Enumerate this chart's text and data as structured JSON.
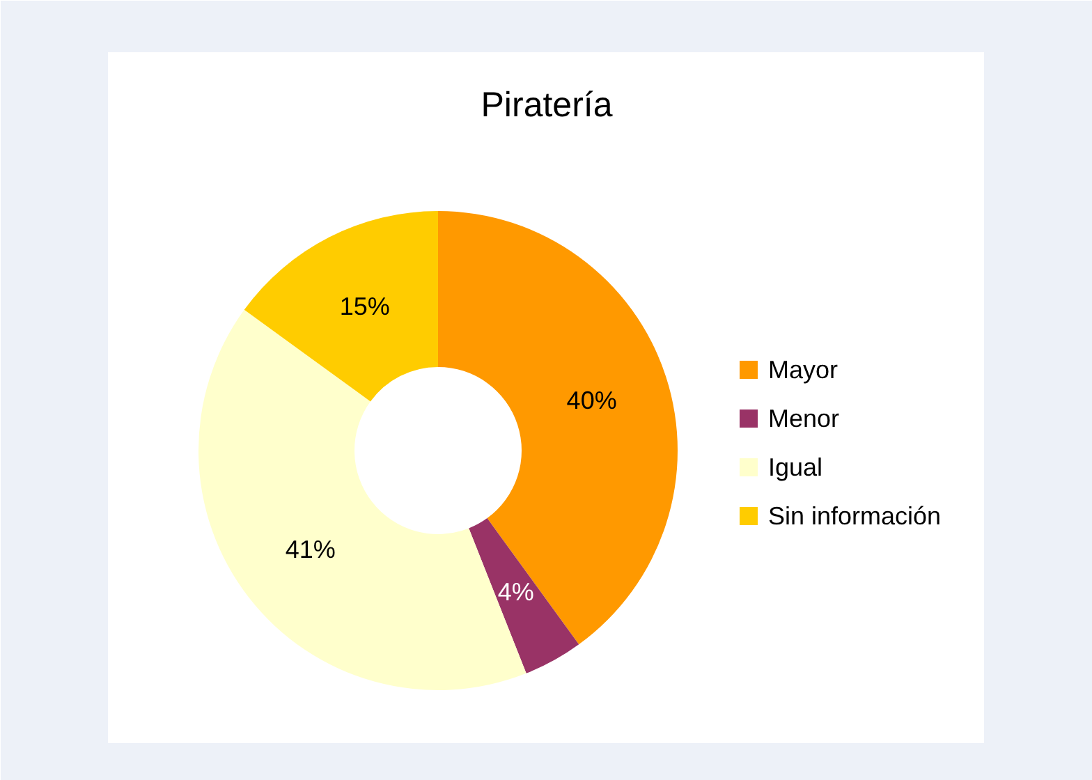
{
  "chart_data": {
    "type": "donut",
    "title": "Piratería",
    "categories": [
      "Mayor",
      "Menor",
      "Igual",
      "Sin información"
    ],
    "values": [
      40,
      4,
      41,
      15
    ],
    "colors": [
      "#ff9900",
      "#993366",
      "#ffffcc",
      "#ffcc00"
    ],
    "value_labels": [
      "40%",
      "4%",
      "41%",
      "15%"
    ],
    "legend": "right"
  }
}
